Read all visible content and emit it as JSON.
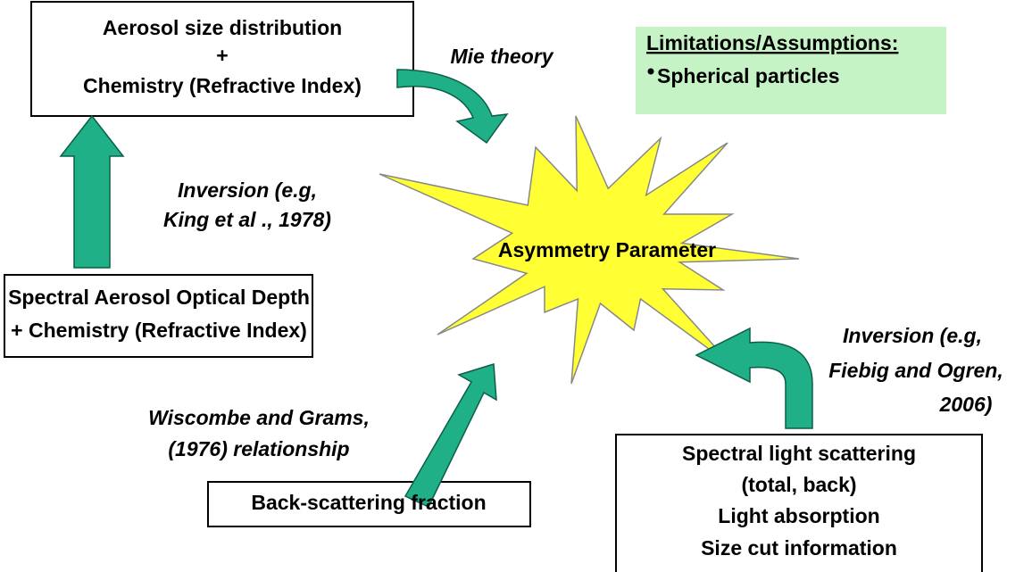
{
  "nodes": [
    {
      "lines": [
        "Aerosol size distribution",
        "+",
        "Chemistry (Refractive Index)"
      ]
    },
    {
      "lines": [
        "Spectral Aerosol Optical Depth",
        "+ Chemistry (Refractive Index)"
      ]
    },
    {
      "lines": [
        "Back-scattering fraction"
      ]
    },
    {
      "lines": [
        "Spectral light scattering",
        "(total, back)",
        "Light absorption",
        "Size cut information"
      ]
    }
  ],
  "center": {
    "label": "Asymmetry Parameter"
  },
  "edges": [
    {
      "lines": [
        "Mie theory"
      ]
    },
    {
      "lines": [
        "Inversion (e.g,",
        "King et al ., 1978)"
      ]
    },
    {
      "lines": [
        "Wiscombe and Grams,",
        "(1976) relationship"
      ]
    },
    {
      "lines": [
        "Inversion (e.g,",
        "Fiebig and Ogren,",
        "2006)"
      ]
    }
  ],
  "note": {
    "title": "Limitations/Assumptions:",
    "items": [
      "Spherical particles"
    ]
  }
}
